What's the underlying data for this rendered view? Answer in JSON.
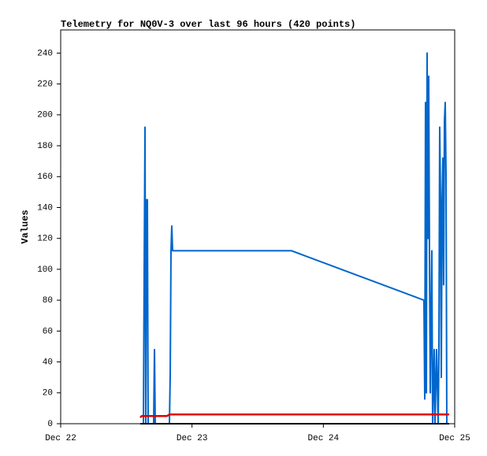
{
  "chart_data": {
    "type": "line",
    "title": "Telemetry for NQ0V-3 over last 96 hours (420 points)",
    "y_label": "Values",
    "xlim": [
      0,
      72
    ],
    "xticks": [
      {
        "value": 0,
        "label": "Dec 22"
      },
      {
        "value": 24,
        "label": "Dec 23"
      },
      {
        "value": 48,
        "label": "Dec 24"
      },
      {
        "value": 72,
        "label": "Dec 25"
      }
    ],
    "ylim": [
      0,
      255
    ],
    "yticks": [
      0,
      20,
      40,
      60,
      80,
      100,
      120,
      140,
      160,
      180,
      200,
      220,
      240
    ],
    "grid": false,
    "series": [
      {
        "color": "#0066cc",
        "width": 2,
        "x": [
          15.12,
          15.26,
          15.41,
          15.55,
          15.7,
          15.84,
          15.98,
          16.99,
          17.14,
          17.28,
          19.87,
          20.02,
          20.16,
          20.3,
          20.45,
          42.19,
          66.38,
          66.53,
          66.67,
          66.82,
          66.96,
          67.1,
          67.25,
          67.39,
          67.54,
          67.82,
          67.97,
          68.26,
          68.4,
          68.69,
          68.98,
          69.12,
          69.26,
          69.41,
          69.55,
          69.7,
          69.84,
          69.98,
          70.13,
          70.27,
          70.42,
          70.56
        ],
        "values": [
          0,
          97,
          192,
          0,
          145,
          145,
          0,
          0,
          48,
          0,
          0,
          32,
          112,
          128,
          112,
          112,
          80,
          16,
          208,
          20,
          240,
          120,
          225,
          110,
          20,
          112,
          0,
          48,
          0,
          48,
          0,
          48,
          192,
          145,
          30,
          145,
          172,
          90,
          196,
          208,
          160,
          0
        ]
      },
      {
        "color": "#e00000",
        "width": 2.5,
        "x": [
          14.54,
          14.83,
          19.44,
          19.87,
          70.99
        ],
        "values": [
          4,
          5,
          5,
          6,
          6
        ]
      },
      {
        "color": "#000000",
        "width": 2,
        "x": [
          14.54,
          70.99
        ],
        "values": [
          0,
          0
        ]
      }
    ]
  }
}
